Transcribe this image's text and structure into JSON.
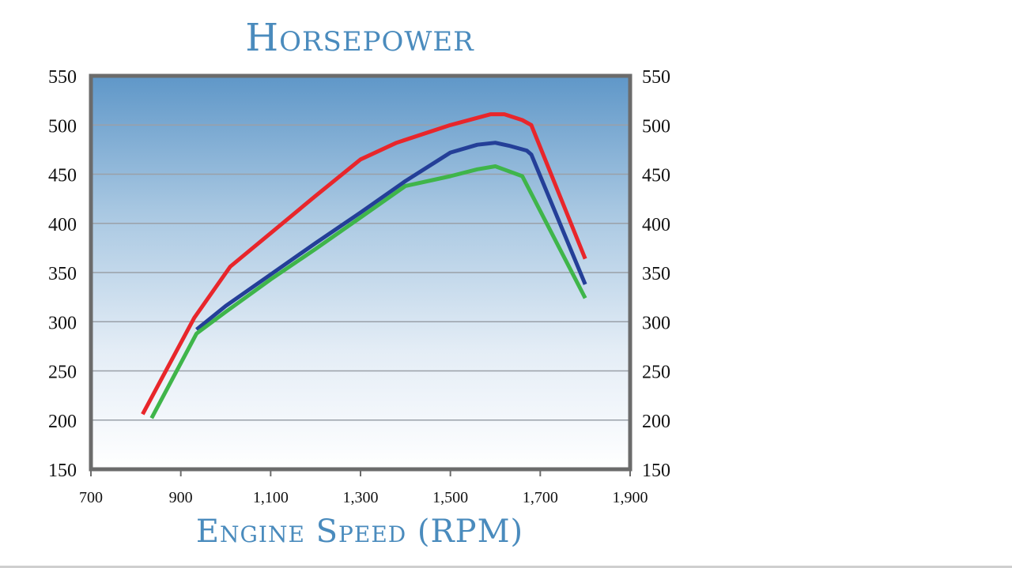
{
  "chart_data": {
    "type": "line",
    "title": "Horsepower",
    "xlabel": "Engine Speed (RPM)",
    "ylabel": "",
    "xlim": [
      700,
      1900
    ],
    "ylim": [
      150,
      550
    ],
    "x_ticks": [
      "700",
      "900",
      "1,100",
      "1,300",
      "1,500",
      "1,700",
      "1,900"
    ],
    "x_tick_values": [
      700,
      900,
      1100,
      1300,
      1500,
      1700,
      1900
    ],
    "y_ticks": [
      "150",
      "200",
      "250",
      "300",
      "350",
      "400",
      "450",
      "500",
      "550"
    ],
    "y_tick_values": [
      150,
      200,
      250,
      300,
      350,
      400,
      450,
      500,
      550
    ],
    "grid": "horizontal",
    "background": "blue-gradient",
    "series": [
      {
        "color": "#e8262b",
        "x": [
          815,
          930,
          1010,
          1100,
          1200,
          1300,
          1380,
          1500,
          1590,
          1620,
          1660,
          1680,
          1800
        ],
        "y": [
          206,
          304,
          356,
          390,
          428,
          465,
          482,
          500,
          511,
          511,
          505,
          500,
          364
        ]
      },
      {
        "color": "#243f98",
        "x": [
          935,
          1000,
          1100,
          1200,
          1300,
          1400,
          1500,
          1560,
          1600,
          1630,
          1670,
          1680,
          1800
        ],
        "y": [
          292,
          316,
          348,
          380,
          411,
          443,
          472,
          480,
          482,
          479,
          474,
          470,
          338
        ]
      },
      {
        "color": "#3fb54a",
        "x": [
          835,
          935,
          1000,
          1100,
          1200,
          1300,
          1400,
          1460,
          1500,
          1560,
          1600,
          1660,
          1800
        ],
        "y": [
          202,
          288,
          310,
          343,
          374,
          406,
          438,
          444,
          448,
          455,
          458,
          448,
          324
        ]
      }
    ]
  }
}
